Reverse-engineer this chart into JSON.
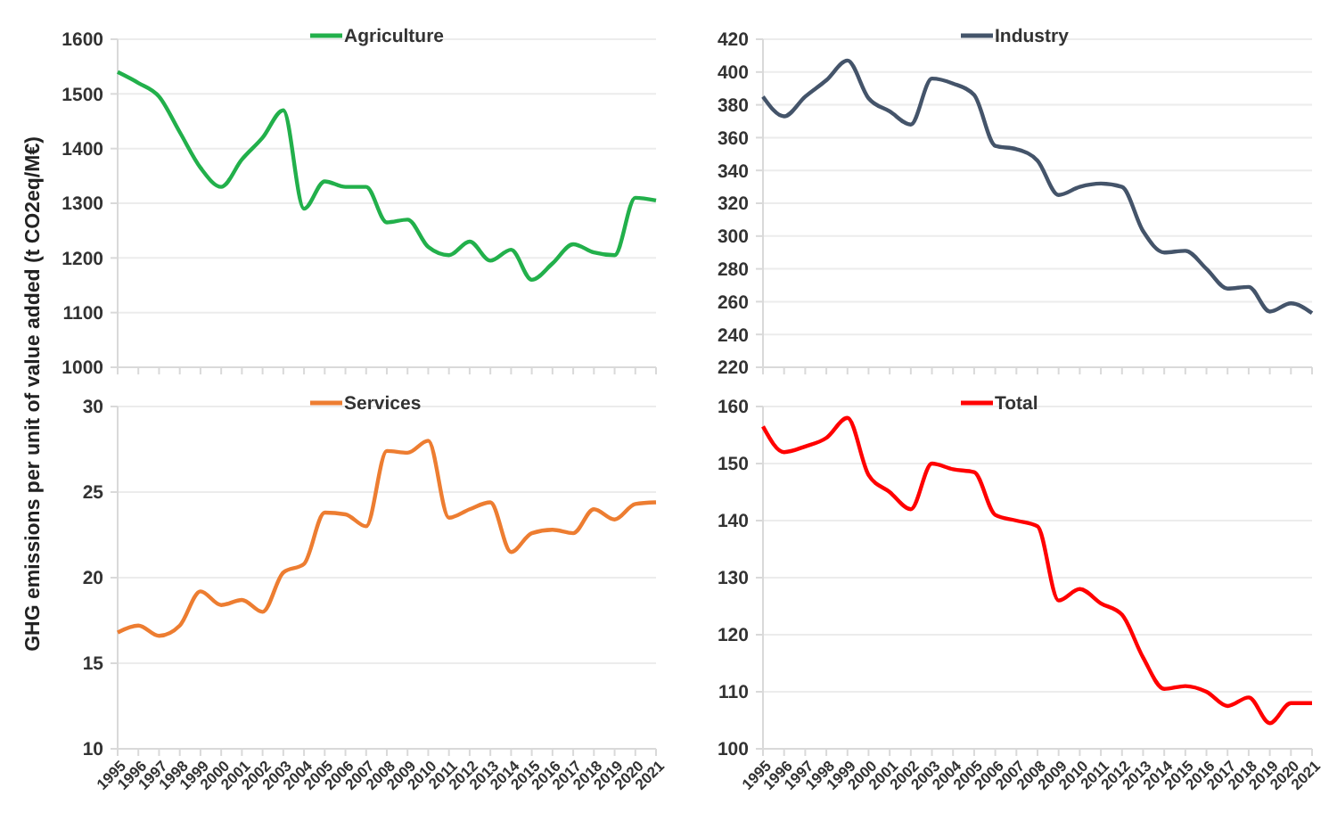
{
  "chart_data": [
    {
      "type": "line",
      "ylabel": "GHG emissions per unit of value added (t CO2eq/M€)",
      "categories": [
        "1995",
        "1996",
        "1997",
        "1998",
        "1999",
        "2000",
        "2001",
        "2002",
        "2003",
        "2004",
        "2005",
        "2006",
        "2007",
        "2008",
        "2009",
        "2010",
        "2011",
        "2012",
        "2013",
        "2014",
        "2015",
        "2016",
        "2017",
        "2018",
        "2019",
        "2020",
        "2021"
      ],
      "series": [
        {
          "name": "Agriculture",
          "color": "#22b04b",
          "values": [
            1540,
            1520,
            1495,
            1430,
            1365,
            1330,
            1380,
            1420,
            1470,
            1290,
            1340,
            1330,
            1330,
            1265,
            1270,
            1220,
            1205,
            1230,
            1195,
            1215,
            1160,
            1190,
            1225,
            1210,
            1205,
            1310,
            1305
          ]
        }
      ],
      "ylim": [
        1000,
        1600
      ],
      "yticks": [
        1000,
        1100,
        1200,
        1300,
        1400,
        1500,
        1600
      ],
      "grid": "y",
      "legend": "top",
      "tick_labels": "y"
    },
    {
      "type": "line",
      "categories": [
        "1995",
        "1996",
        "1997",
        "1998",
        "1999",
        "2000",
        "2001",
        "2002",
        "2003",
        "2004",
        "2005",
        "2006",
        "2007",
        "2008",
        "2009",
        "2010",
        "2011",
        "2012",
        "2013",
        "2014",
        "2015",
        "2016",
        "2017",
        "2018",
        "2019",
        "2020",
        "2021"
      ],
      "series": [
        {
          "name": "Industry",
          "color": "#44546a",
          "values": [
            385,
            373,
            385,
            395,
            407,
            384,
            376,
            368,
            396,
            393,
            386,
            355,
            353,
            346,
            325,
            330,
            332,
            330,
            303,
            290,
            291,
            280,
            268,
            269,
            254,
            259,
            253
          ]
        }
      ],
      "ylim": [
        220,
        420
      ],
      "yticks": [
        220,
        240,
        260,
        280,
        300,
        320,
        340,
        360,
        380,
        400,
        420
      ],
      "grid": "y",
      "legend": "top",
      "tick_labels": "y"
    },
    {
      "type": "line",
      "categories": [
        "1995",
        "1996",
        "1997",
        "1998",
        "1999",
        "2000",
        "2001",
        "2002",
        "2003",
        "2004",
        "2005",
        "2006",
        "2007",
        "2008",
        "2009",
        "2010",
        "2011",
        "2012",
        "2013",
        "2014",
        "2015",
        "2016",
        "2017",
        "2018",
        "2019",
        "2020",
        "2021"
      ],
      "series": [
        {
          "name": "Services",
          "color": "#ed7d31",
          "values": [
            16.8,
            17.2,
            16.6,
            17.2,
            19.2,
            18.4,
            18.7,
            18.0,
            20.3,
            20.8,
            23.8,
            23.7,
            23.0,
            27.4,
            27.3,
            28.0,
            23.5,
            24.0,
            24.4,
            21.5,
            22.6,
            22.8,
            22.6,
            24.0,
            23.4,
            24.3,
            24.4
          ]
        }
      ],
      "ylim": [
        10,
        30
      ],
      "yticks": [
        10,
        15,
        20,
        25,
        30
      ],
      "grid": "y",
      "legend": "top"
    },
    {
      "type": "line",
      "categories": [
        "1995",
        "1996",
        "1997",
        "1998",
        "1999",
        "2000",
        "2001",
        "2002",
        "2003",
        "2004",
        "2005",
        "2006",
        "2007",
        "2008",
        "2009",
        "2010",
        "2011",
        "2012",
        "2013",
        "2014",
        "2015",
        "2016",
        "2017",
        "2018",
        "2019",
        "2020",
        "2021"
      ],
      "series": [
        {
          "name": "Total",
          "color": "#ff0000",
          "values": [
            156.5,
            152,
            153,
            154.5,
            158,
            148,
            145,
            142,
            150,
            149,
            148.5,
            141,
            140,
            139,
            126,
            128,
            125.5,
            123.5,
            116,
            110.5,
            111,
            110,
            107.5,
            109,
            104.5,
            108,
            108
          ]
        }
      ],
      "ylim": [
        100,
        160
      ],
      "yticks": [
        100,
        110,
        120,
        130,
        140,
        150,
        160
      ],
      "grid": "y",
      "legend": "top"
    }
  ]
}
